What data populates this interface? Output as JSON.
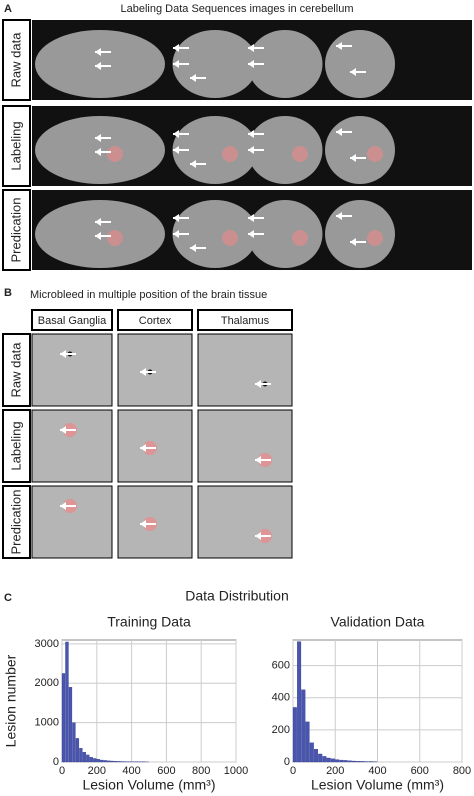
{
  "panel_a": {
    "label": "A",
    "title": "Labeling Data Sequences images in cerebellum",
    "rows": [
      "Raw data",
      "Labeling",
      "Predication"
    ]
  },
  "panel_b": {
    "label": "B",
    "title": "Microbleed in multiple position of the brain tissue",
    "columns": [
      "Basal Ganglia",
      "Cortex",
      "Thalamus"
    ],
    "rows": [
      "Raw data",
      "Labeling",
      "Predication"
    ]
  },
  "panel_c": {
    "label": "C",
    "title": "Data Distribution"
  },
  "chart_data": [
    {
      "type": "histogram",
      "title": "Training Data",
      "ylabel": "Lesion number",
      "xlabel": "Lesion Volume (mm³)",
      "color": "#4a55b0",
      "bins": [
        0,
        20,
        40,
        60,
        80,
        100,
        120,
        140,
        160,
        180,
        200,
        220,
        240,
        260,
        280,
        300,
        320,
        340,
        360,
        380,
        400,
        420,
        440,
        460,
        480,
        500
      ],
      "values": [
        2250,
        3050,
        1900,
        1000,
        600,
        350,
        250,
        180,
        120,
        90,
        70,
        50,
        40,
        30,
        25,
        20,
        15,
        12,
        10,
        8,
        7,
        6,
        5,
        4,
        3
      ],
      "xlim": [
        0,
        1000
      ],
      "ylim": [
        0,
        3100
      ],
      "xticks": [
        0,
        200,
        400,
        600,
        800,
        1000
      ],
      "yticks": [
        0,
        1000,
        2000,
        3000
      ],
      "grid": true
    },
    {
      "type": "histogram",
      "title": "Validation Data",
      "xlabel": "Lesion Volume (mm³)",
      "color": "#4a55b0",
      "bins": [
        0,
        20,
        40,
        60,
        80,
        100,
        120,
        140,
        160,
        180,
        200,
        220,
        240,
        260,
        280,
        300,
        320,
        340,
        360,
        380,
        400
      ],
      "values": [
        340,
        750,
        450,
        250,
        120,
        80,
        50,
        35,
        25,
        20,
        15,
        12,
        10,
        8,
        6,
        5,
        4,
        3,
        3,
        2
      ],
      "xlim": [
        0,
        800
      ],
      "ylim": [
        0,
        760
      ],
      "xticks": [
        0,
        200,
        400,
        600,
        800
      ],
      "yticks": [
        0,
        200,
        400,
        600
      ],
      "grid": true
    }
  ]
}
